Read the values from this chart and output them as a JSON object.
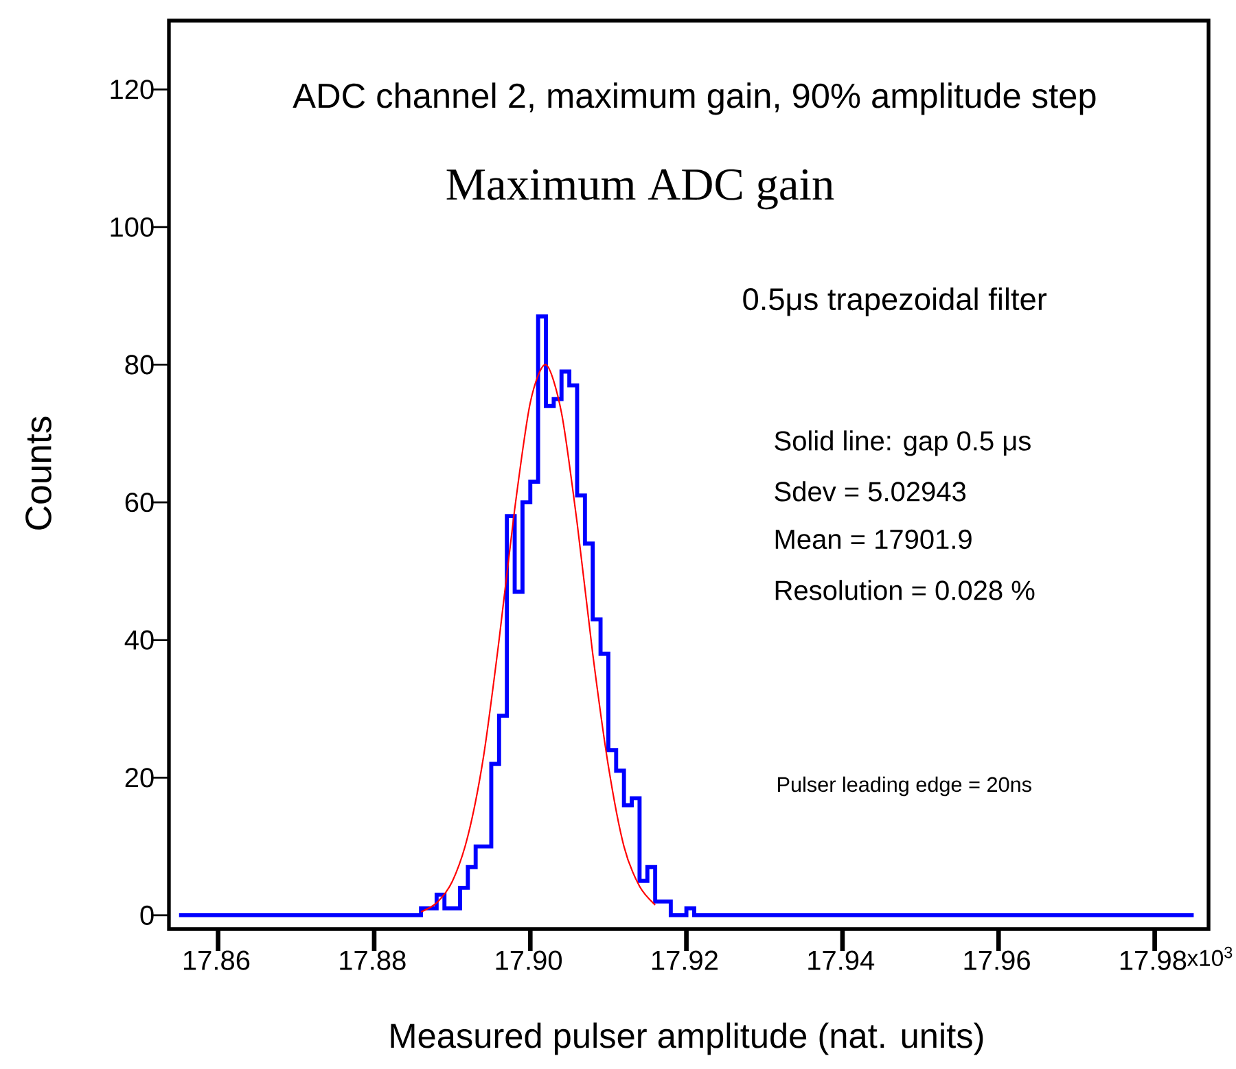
{
  "chart_data": {
    "type": "histogram",
    "title": "ADC channel 2, maximum gain, 90% amplitude step",
    "subtitle": "Maximum ADC gain",
    "xlabel": "Measured pulser amplitude (nat. units)",
    "ylabel": "Counts",
    "annotations": [
      "0.5μs trapezoidal filter",
      "Solid line: gap 0.5 μs",
      "Sdev = 5.02943",
      "Mean = 17901.9",
      "Resolution = 0.028 %",
      "Pulser leading edge = 20ns",
      "x10$^{3}$"
    ],
    "series": [
      {
        "type": "histogram",
        "color": "#0000ff",
        "bins": [
          17.855,
          17.886,
          17.887,
          17.888,
          17.889,
          17.89,
          17.891,
          17.892,
          17.893,
          17.894,
          17.895,
          17.896,
          17.897,
          17.898,
          17.899,
          17.9,
          17.901,
          17.902,
          17.903,
          17.904,
          17.905,
          17.906,
          17.907,
          17.908,
          17.909,
          17.91,
          17.911,
          17.912,
          17.913,
          17.914,
          17.915,
          17.916,
          17.917,
          17.918,
          17.92,
          17.921,
          17.985
        ],
        "values": [
          0,
          1,
          1,
          3,
          1,
          1,
          4,
          7,
          10,
          10,
          22,
          29,
          58,
          47,
          60,
          63,
          87,
          74,
          75,
          79,
          77,
          61,
          54,
          43,
          38,
          24,
          21,
          16,
          17,
          5,
          7,
          2,
          2,
          0,
          1,
          0
        ]
      },
      {
        "type": "line",
        "color": "#ff0000",
        "x": [
          17.886,
          17.888,
          17.89,
          17.892,
          17.894,
          17.896,
          17.898,
          17.9,
          17.902,
          17.904,
          17.906,
          17.908,
          17.91,
          17.912,
          17.914,
          17.916
        ],
        "values": [
          0.5,
          1.8,
          4.9,
          11.5,
          23,
          40,
          59,
          74.5,
          80,
          73,
          57,
          38,
          21.7,
          10,
          4.2,
          1.5
        ]
      }
    ],
    "xlim": [
      17.8537,
      17.9869
    ],
    "ylim": [
      -2,
      130
    ],
    "xticks": [
      17.86,
      17.88,
      {
        "value": 17.9,
        "label": "17.90"
      },
      17.92,
      17.94,
      17.96,
      17.98
    ],
    "yticks": [
      0,
      20,
      40,
      60,
      80,
      100,
      120
    ],
    "grid": false
  }
}
